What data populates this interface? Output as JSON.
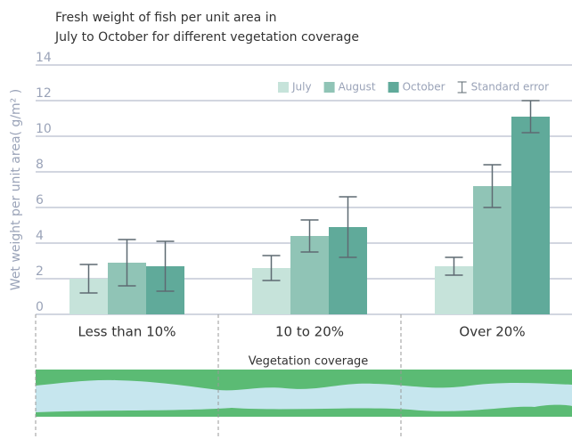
{
  "chart_data": {
    "type": "bar",
    "title": "Fresh weight of fish per unit area in",
    "subtitle": "July to October for different vegetation coverage",
    "y_label": "Wet weight per unit area( g/m² )",
    "x_label": "Vegetation coverage",
    "categories": [
      "Less than 10%",
      "10 to 20%",
      "Over 20%"
    ],
    "series": [
      {
        "name": "July",
        "color": "#c6e3da",
        "values": [
          2.0,
          2.6,
          2.7
        ],
        "errors": [
          0.8,
          0.7,
          0.5
        ]
      },
      {
        "name": "August",
        "color": "#90c4b6",
        "values": [
          2.9,
          4.4,
          7.2
        ],
        "errors": [
          1.3,
          0.9,
          1.2
        ]
      },
      {
        "name": "October",
        "color": "#60aa9a",
        "values": [
          2.7,
          4.9,
          11.1
        ],
        "errors": [
          1.4,
          1.7,
          0.9
        ]
      }
    ],
    "error_label": "Standard error",
    "ylim": [
      0,
      14
    ],
    "yticks": [
      0,
      2,
      4,
      6,
      8,
      10,
      12,
      14
    ],
    "grid": true,
    "legend": "top-right"
  }
}
